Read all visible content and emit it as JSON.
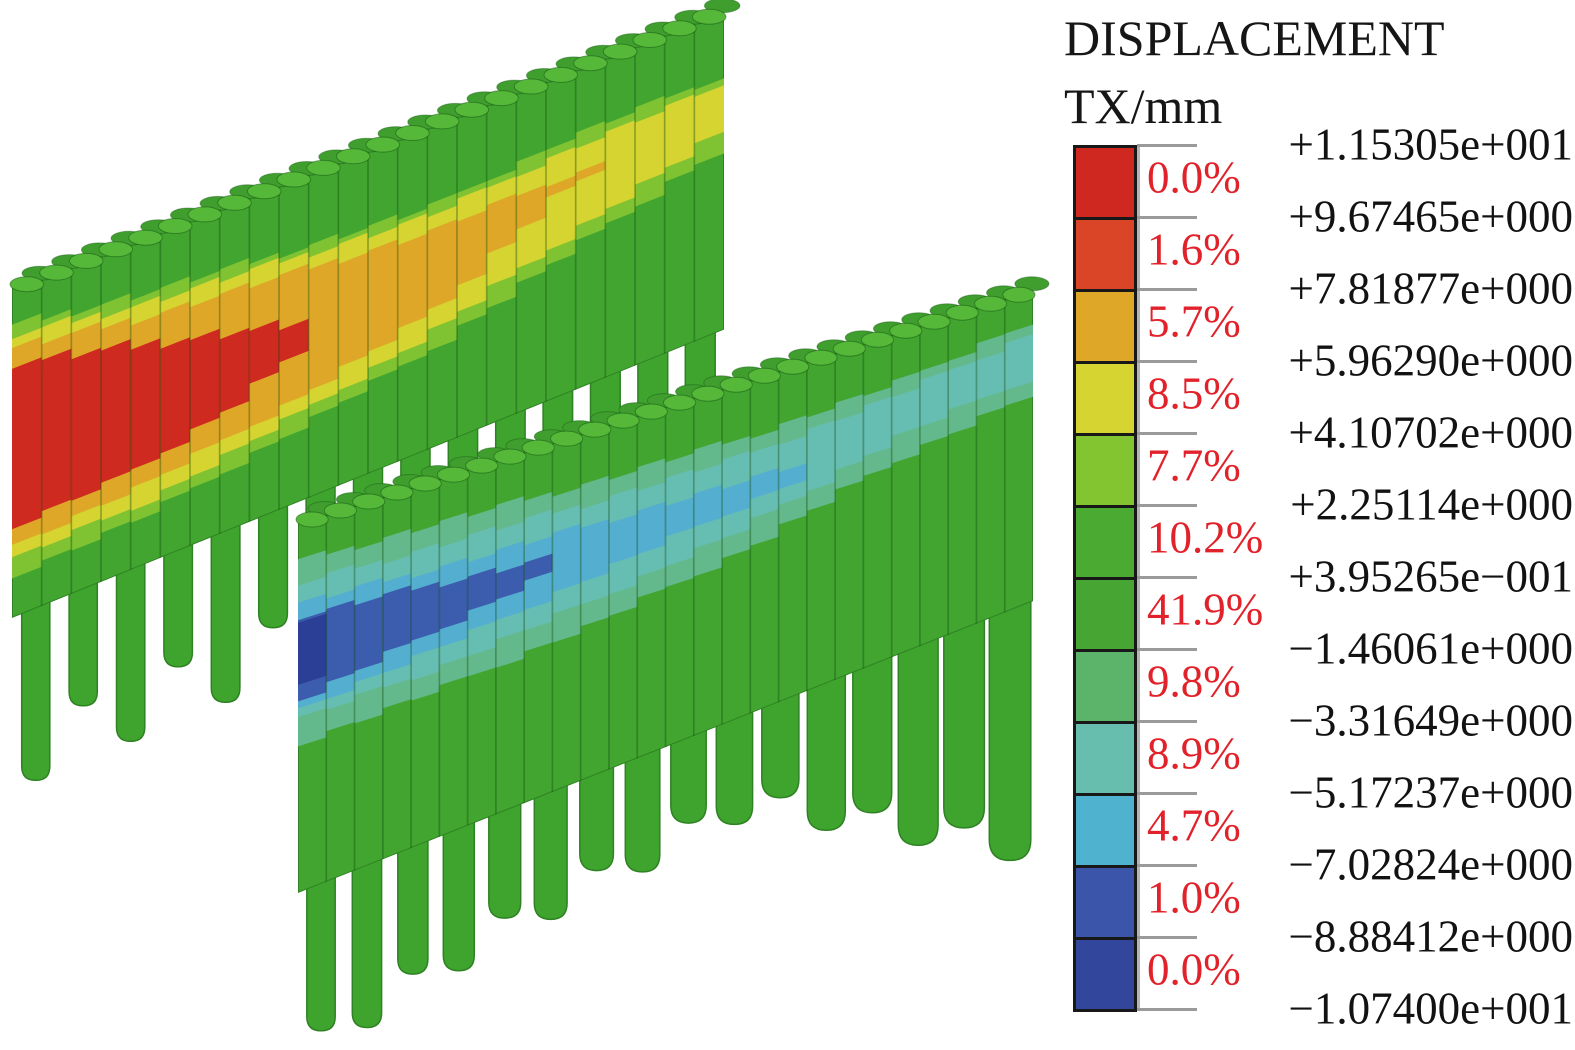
{
  "figure": {
    "kind": "3D finite-element contour plot",
    "subject": "two rows of pile walls (isometric view) colored by horizontal displacement"
  },
  "legend": {
    "title_line1": "DISPLACEMENT",
    "title_line2": "TX/mm",
    "text_color": "#121212",
    "percent_color": "#e2222a",
    "tick_color": "#9a9a9a",
    "axis_line_color": "#b5b5b5",
    "swatch_border_color": "#181818",
    "levels": [
      "+1.15305e+001",
      "+9.67465e+000",
      "+7.81877e+000",
      "+5.96290e+000",
      "+4.10702e+000",
      "+2.25114e+000",
      "+3.95265e−001",
      "−1.46061e+000",
      "−3.31649e+000",
      "−5.17237e+000",
      "−7.02824e+000",
      "−8.88412e+000",
      "−1.07400e+001"
    ],
    "percents": [
      "0.0%",
      "1.6%",
      "5.7%",
      "8.5%",
      "7.7%",
      "10.2%",
      "41.9%",
      "9.8%",
      "8.9%",
      "4.7%",
      "1.0%",
      "0.0%"
    ],
    "colors": [
      "#ce2820",
      "#d94526",
      "#dfa727",
      "#d5d431",
      "#83c431",
      "#4aaa31",
      "#47a534",
      "#5bb46a",
      "#67bdae",
      "#4fb2cf",
      "#3a55a9",
      "#32479b"
    ]
  },
  "palette": {
    "wall_green": "#41a530",
    "pile_green": "#3fa42d",
    "pile_green_dark": "#2e8223",
    "cap_green": "#55b838",
    "cap_green_back": "#3f9e2e",
    "seam": "rgba(15,70,10,0.35)",
    "face_edge": "rgba(20,80,15,0.4)",
    "band_light_green": "#7fc332",
    "band_yellow": "#d5d431",
    "band_amber": "#dfa727",
    "band_red": "#ce2a20",
    "band_sea_green": "#64b98c",
    "band_teal": "#66bdb2",
    "band_sky": "#54aed0",
    "band_blue": "#3c5cae",
    "band_navy": "#2c3f97"
  },
  "chart_data": {
    "type": "heatmap",
    "title": "DISPLACEMENT TX/mm",
    "component": "TX",
    "units": "mm",
    "legend_position": "right",
    "contour_levels_mm": [
      11.5305,
      9.67465,
      7.81877,
      5.9629,
      4.10702,
      2.25114,
      0.395265,
      -1.46061,
      -3.31649,
      -5.17237,
      -7.02824,
      -8.88412,
      -10.74
    ],
    "band_percentages": [
      0.0,
      1.6,
      5.7,
      8.5,
      7.7,
      10.2,
      41.9,
      9.8,
      8.9,
      4.7,
      1.0,
      0.0
    ],
    "band_colors": [
      "#ce2820",
      "#d94526",
      "#dfa727",
      "#d5d431",
      "#83c431",
      "#4aaa31",
      "#47a534",
      "#5bb46a",
      "#67bdae",
      "#4fb2cf",
      "#3a55a9",
      "#32479b"
    ],
    "value_range_mm": [
      -10.74,
      11.5305
    ],
    "regions": [
      {
        "name": "back pile wall",
        "dominant": "positive displacement",
        "pattern": "green with yellow/orange bands and a red core (max ~+11.5 mm) at the left end, fading to yellow toward the right"
      },
      {
        "name": "front pile wall",
        "dominant": "negative displacement",
        "pattern": "green with sea-green/teal band through mid-height, sky-blue lobe left-of-center and a navy core (min ~-10.7 mm) at the left edge"
      }
    ]
  }
}
